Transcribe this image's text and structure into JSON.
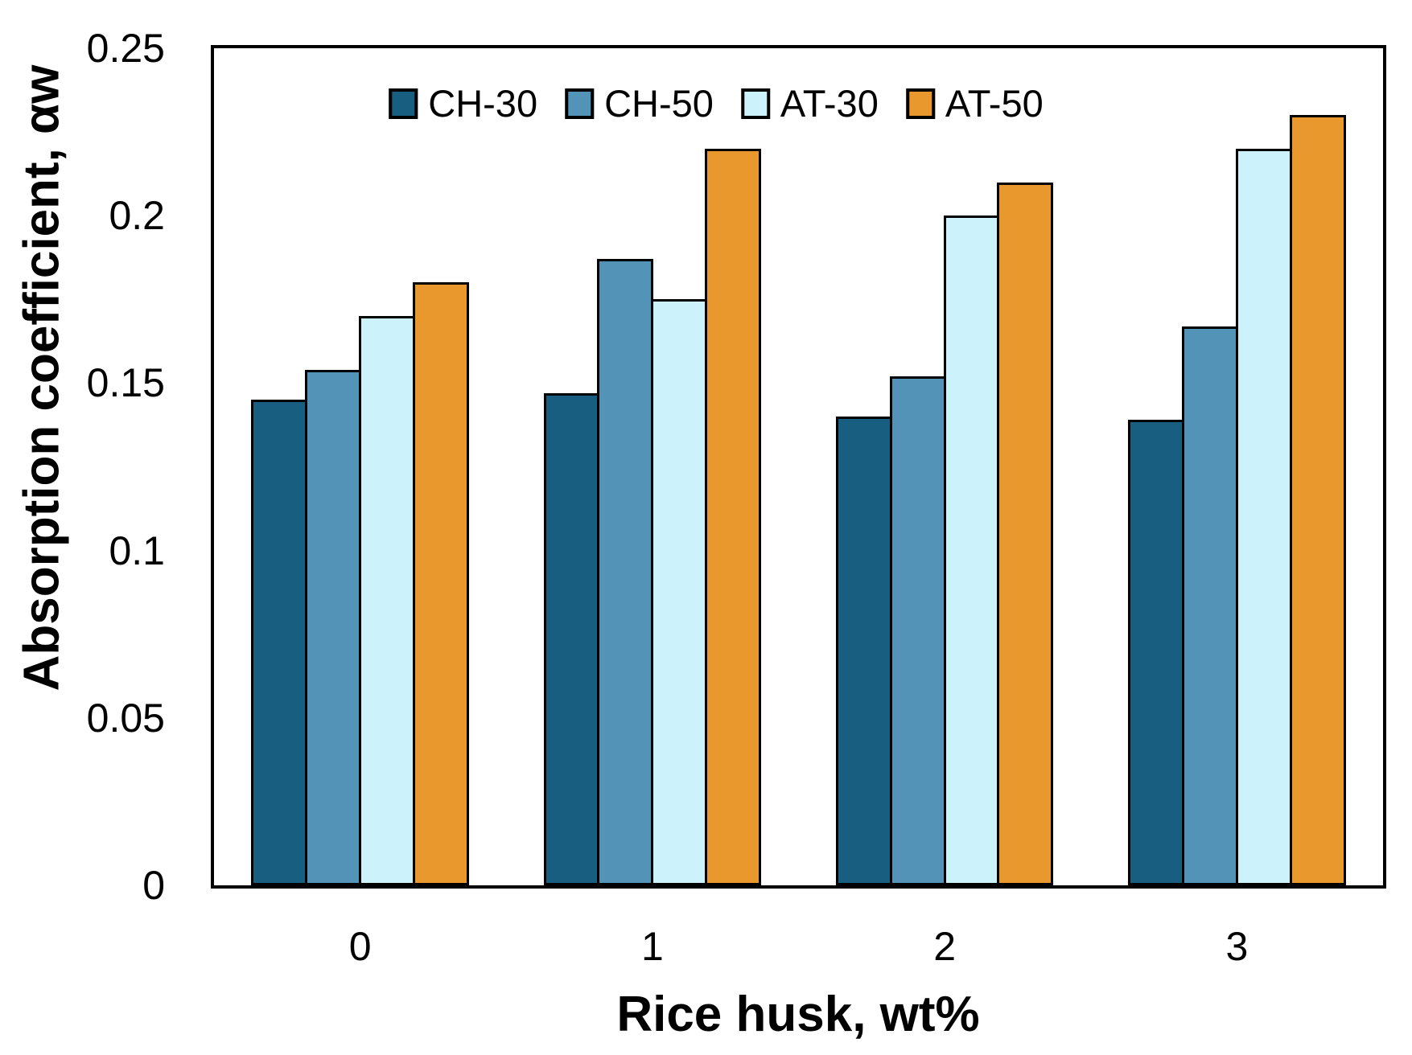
{
  "chart_data": {
    "type": "bar",
    "title": "",
    "xlabel": "Rice husk, wt%",
    "ylabel": "Absorption coefficient, αw",
    "categories": [
      "0",
      "1",
      "2",
      "3"
    ],
    "series": [
      {
        "name": "CH-30",
        "color": "#175e80",
        "values": [
          0.145,
          0.147,
          0.14,
          0.139
        ]
      },
      {
        "name": "CH-50",
        "color": "#5493b8",
        "values": [
          0.154,
          0.187,
          0.152,
          0.167
        ]
      },
      {
        "name": "AT-30",
        "color": "#ccf2fc",
        "values": [
          0.17,
          0.175,
          0.2,
          0.22
        ]
      },
      {
        "name": "AT-50",
        "color": "#e8982c",
        "values": [
          0.18,
          0.22,
          0.21,
          0.23
        ]
      }
    ],
    "ylim": [
      0,
      0.25
    ],
    "yticks": [
      0,
      0.05,
      0.1,
      0.15,
      0.2,
      0.25
    ],
    "ytick_labels": [
      "0",
      "0.05",
      "0.1",
      "0.15",
      "0.2",
      "0.25"
    ],
    "legend_position": "top-center-inside",
    "grid": false,
    "bar_outline_color": "#000000",
    "frame_color": "#000000",
    "background_color": "#ffffff"
  }
}
